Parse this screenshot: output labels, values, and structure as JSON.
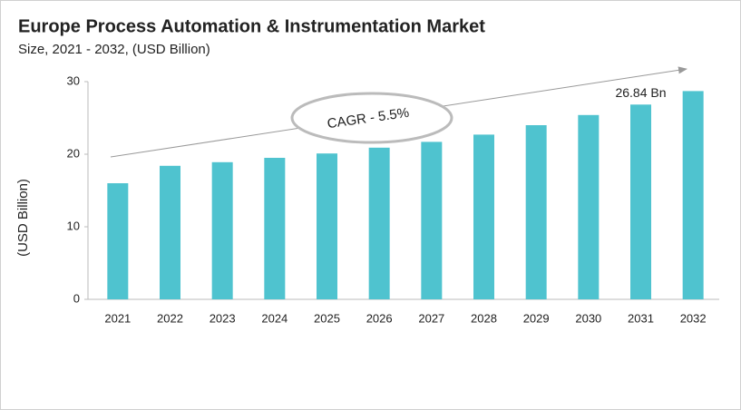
{
  "chart_data": {
    "type": "bar",
    "title": "Europe Process Automation & Instrumentation Market",
    "subtitle": "Size, 2021 - 2032, (USD Billion)",
    "y_label": "(USD Billion)",
    "annotation": "CAGR - 5.5%",
    "categories": [
      "2021",
      "2022",
      "2023",
      "2024",
      "2025",
      "2026",
      "2027",
      "2028",
      "2029",
      "2030",
      "2031",
      "2032"
    ],
    "values": [
      16.0,
      18.4,
      18.9,
      19.5,
      20.1,
      20.9,
      21.7,
      22.7,
      24.0,
      25.4,
      26.84,
      28.7
    ],
    "value_labels": [
      null,
      null,
      null,
      null,
      null,
      null,
      null,
      null,
      null,
      null,
      "26.84 Bn",
      null
    ],
    "color": "#4fc3cf",
    "ylim": [
      0,
      30
    ],
    "yticks": [
      0,
      10,
      20,
      30
    ],
    "grid": false
  }
}
